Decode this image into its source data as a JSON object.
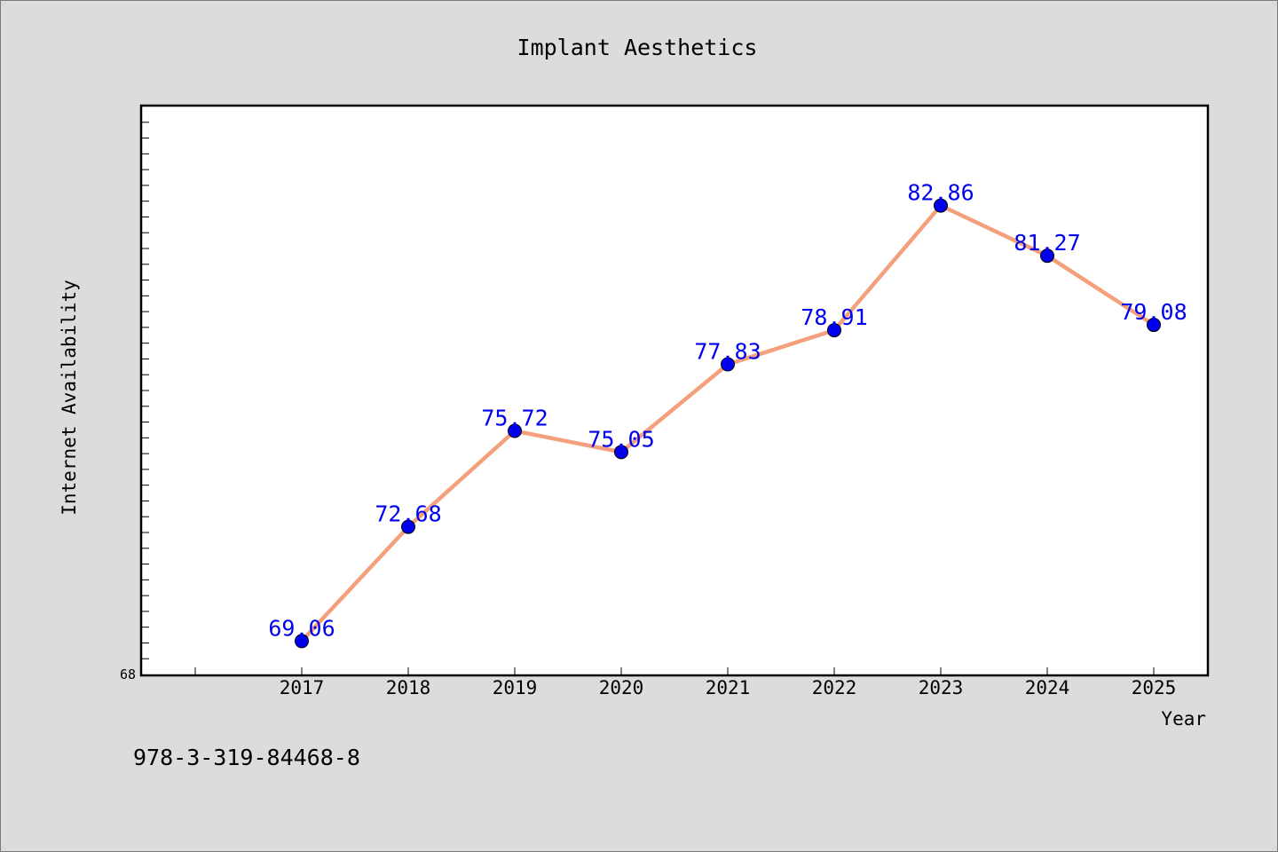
{
  "isbn": "978-3-319-84468-8",
  "chart_data": {
    "type": "line",
    "title": "Implant Aesthetics",
    "xlabel": "Year",
    "ylabel": "Internet Availability",
    "x": [
      "2017",
      "2018",
      "2019",
      "2020",
      "2021",
      "2022",
      "2023",
      "2024",
      "2025"
    ],
    "series": [
      {
        "values": [
          69.06,
          72.68,
          75.72,
          75.05,
          77.83,
          78.91,
          82.86,
          81.27,
          79.08
        ],
        "labels": [
          "69.06",
          "72.68",
          "75.72",
          "75.05",
          "77.83",
          "78.91",
          "82.86",
          "81.27",
          "79.08"
        ]
      }
    ],
    "ylim": [
      68,
      86
    ],
    "y_tick_labels": [
      "68"
    ],
    "grid": false,
    "colors": {
      "line": "#f4a07c",
      "marker": "#0000ee",
      "data_label": "#0000ee",
      "plot_bg": "#ffffff",
      "page_bg": "#dcdcdc"
    }
  }
}
